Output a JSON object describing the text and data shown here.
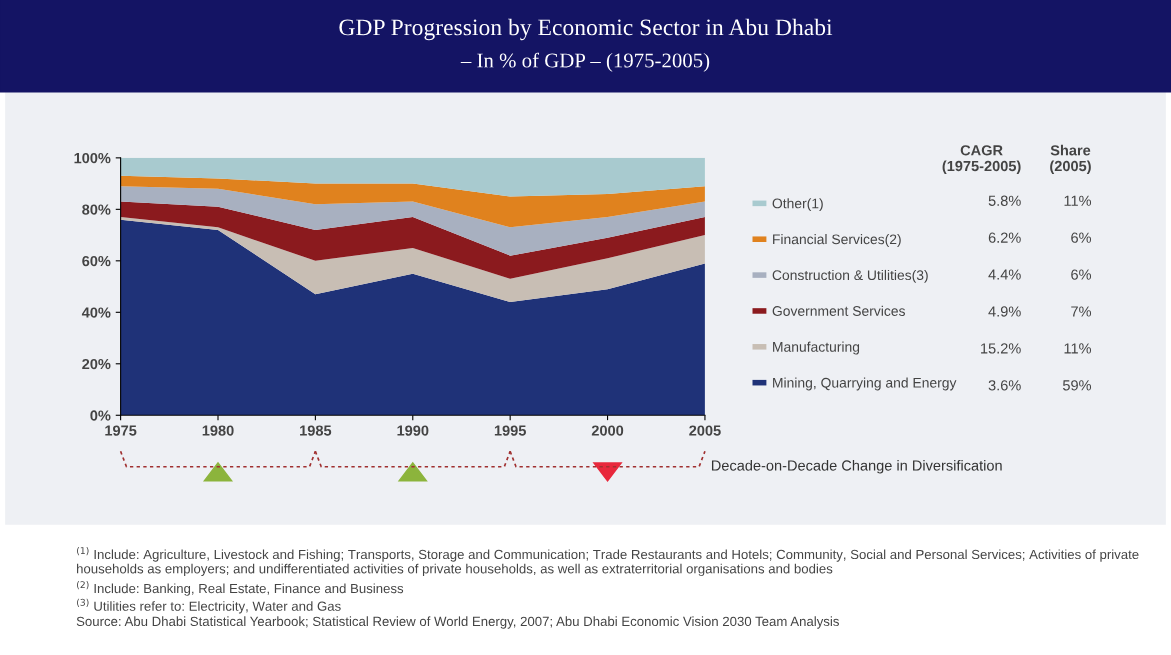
{
  "chart_data": {
    "type": "area",
    "stacked": true,
    "title": "GDP Progression by Economic Sector in Abu Dhabi",
    "subtitle": "– In % of GDP – (1975-2005)",
    "x": [
      1975,
      1980,
      1985,
      1990,
      1995,
      2000,
      2005
    ],
    "xlim": [
      1975,
      2005
    ],
    "xticks": [
      1975,
      1980,
      1985,
      1990,
      1995,
      2000,
      2005
    ],
    "ylim": [
      0,
      100
    ],
    "yticks": [
      {
        "value": 0,
        "label": "0%"
      },
      {
        "value": 20,
        "label": "20%"
      },
      {
        "value": 40,
        "label": "40%"
      },
      {
        "value": 60,
        "label": "60%"
      },
      {
        "value": 80,
        "label": "80%"
      },
      {
        "value": 100,
        "label": "100%"
      }
    ],
    "grid": false,
    "legend": "right",
    "series": [
      {
        "name": "Mining, Quarrying and Energy",
        "color": "#1f3278",
        "values": [
          76,
          72,
          47,
          55,
          44,
          49,
          59
        ]
      },
      {
        "name": "Manufacturing",
        "color": "#c8beb4",
        "values": [
          1,
          1,
          13,
          10,
          9,
          12,
          11
        ]
      },
      {
        "name": "Government Services",
        "color": "#8b1a1e",
        "values": [
          6,
          8,
          12,
          12,
          9,
          8,
          7
        ]
      },
      {
        "name": "Construction & Utilities(3)",
        "color": "#a8b0c0",
        "values": [
          6,
          7,
          10,
          6,
          11,
          8,
          6
        ]
      },
      {
        "name": "Financial Services(2)",
        "color": "#e0821e",
        "values": [
          4,
          4,
          8,
          7,
          12,
          9,
          6
        ]
      },
      {
        "name": "Other(1)",
        "color": "#a8cacf",
        "values": [
          7,
          8,
          10,
          10,
          15,
          14,
          11
        ]
      }
    ],
    "annotations": [
      "CAGR\n(1975-2005)",
      "Share\n(2005)",
      "3.6%",
      "59%",
      "15.2%",
      "11%",
      "4.9%",
      "7%",
      "4.4%",
      "6%",
      "6.2%",
      "6%",
      "5.8%",
      "11%",
      "Decade-on-Decade Change in Diversification",
      "$^{(1)}$ Include: Agriculture, Livestock and Fishing; Transports, Storage and Communication; Trade Restaurants and Hotels; Community, Social and Personal Services; Activities of private households as employers; and undifferentiated activities of private households, as well as extraterritorial organisations and bodies",
      "$^{(2)}$ Include: Banking, Real Estate, Finance and Business",
      "$^{(3)}$ Utilities refer to: Electricity, Water and Gas",
      "Source: Abu Dhabi Statistical Yearbook; Statistical Review of World Energy, 2007; Abu Dhabi Economic Vision 2030 Team Analysis"
    ]
  }
}
